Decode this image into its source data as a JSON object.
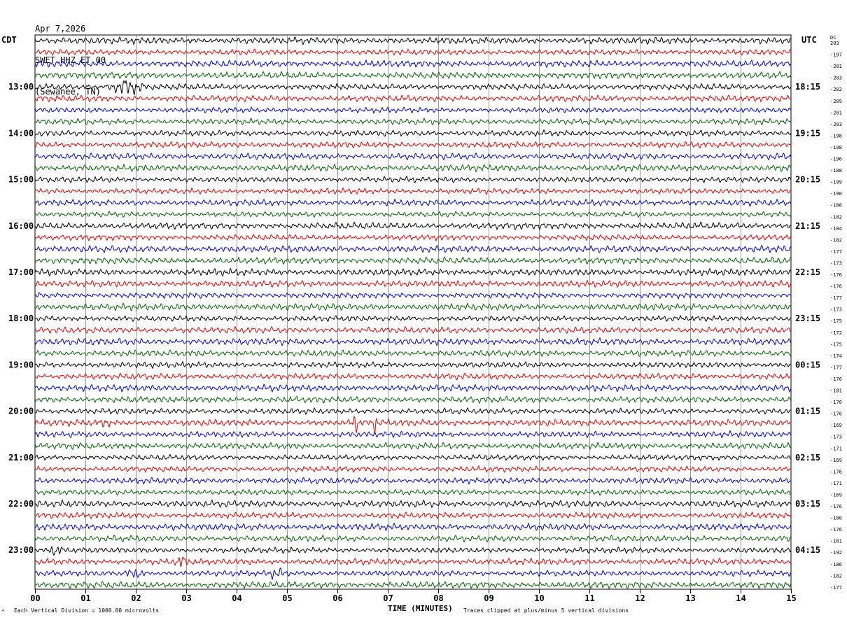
{
  "header": {
    "date": "Apr 7,2026",
    "station": "SWET HHZ ET 00",
    "location": "(Sewanee, TN)"
  },
  "left_zone": "CDT",
  "right_zone": "UTC",
  "dc_header": "DC",
  "footer": {
    "left": "Each Vertical Division = 1000.00 microvolts",
    "right": "Traces clipped at plus/minus 5 vertical divisions",
    "corner_mark": "^"
  },
  "colors": {
    "trace_cycle": [
      "#000000",
      "#ee0000",
      "#0000dd",
      "#006600"
    ],
    "grid": "#808080"
  },
  "chart_data": {
    "type": "line",
    "title": "",
    "xlabel": "TIME (MINUTES)",
    "ylabel": "",
    "xlim": [
      0,
      15
    ],
    "x_ticks": [
      "00",
      "01",
      "02",
      "03",
      "04",
      "05",
      "06",
      "07",
      "08",
      "09",
      "10",
      "11",
      "12",
      "13",
      "14",
      "15"
    ],
    "grid": "vertical",
    "traces_per_hour": 4,
    "trace_count": 48,
    "left_hour_labels": [
      {
        "trace_index": 4,
        "label": "13:00"
      },
      {
        "trace_index": 8,
        "label": "14:00"
      },
      {
        "trace_index": 12,
        "label": "15:00"
      },
      {
        "trace_index": 16,
        "label": "16:00"
      },
      {
        "trace_index": 20,
        "label": "17:00"
      },
      {
        "trace_index": 24,
        "label": "18:00"
      },
      {
        "trace_index": 28,
        "label": "19:00"
      },
      {
        "trace_index": 32,
        "label": "20:00"
      },
      {
        "trace_index": 36,
        "label": "21:00"
      },
      {
        "trace_index": 40,
        "label": "22:00"
      },
      {
        "trace_index": 44,
        "label": "23:00"
      }
    ],
    "right_hour_labels": [
      {
        "trace_index": 4,
        "label": "18:15"
      },
      {
        "trace_index": 8,
        "label": "19:15"
      },
      {
        "trace_index": 12,
        "label": "20:15"
      },
      {
        "trace_index": 16,
        "label": "21:15"
      },
      {
        "trace_index": 20,
        "label": "22:15"
      },
      {
        "trace_index": 24,
        "label": "23:15"
      },
      {
        "trace_index": 28,
        "label": "00:15"
      },
      {
        "trace_index": 32,
        "label": "01:15"
      },
      {
        "trace_index": 36,
        "label": "02:15"
      },
      {
        "trace_index": 40,
        "label": "03:15"
      },
      {
        "trace_index": 44,
        "label": "04:15"
      }
    ],
    "dc_offsets": [
      "203",
      "-197",
      "-201",
      "-203",
      "-202",
      "-209",
      "-201",
      "-203",
      "-198",
      "-198",
      "-196",
      "-188",
      "-199",
      "-190",
      "-186",
      "-182",
      "-184",
      "-182",
      "-177",
      "-173",
      "-176",
      "-176",
      "-177",
      "-173",
      "-175",
      "-172",
      "-175",
      "-174",
      "-177",
      "-176",
      "-181",
      "-176",
      "-176",
      "-169",
      "-173",
      "-171",
      "-169",
      "-176",
      "-171",
      "-169",
      "-176",
      "-180",
      "-176",
      "-181",
      "-192",
      "-186",
      "-182",
      "-177"
    ],
    "events": [
      {
        "trace_index": 4,
        "minute": 1.8,
        "amplitude": "high",
        "width": 0.4
      },
      {
        "trace_index": 33,
        "minute": 6.35,
        "amplitude": "high",
        "width": 0.08
      },
      {
        "trace_index": 33,
        "minute": 6.75,
        "amplitude": "high",
        "width": 0.05
      },
      {
        "trace_index": 33,
        "minute": 1.4,
        "amplitude": "medium",
        "width": 0.1
      },
      {
        "trace_index": 44,
        "minute": 4.25,
        "amplitude": "medium",
        "width": 0.05
      },
      {
        "trace_index": 44,
        "minute": 0.4,
        "amplitude": "medium",
        "width": 0.2
      },
      {
        "trace_index": 45,
        "minute": 2.9,
        "amplitude": "medium",
        "width": 0.15
      },
      {
        "trace_index": 46,
        "minute": 2.0,
        "amplitude": "medium",
        "width": 0.25
      },
      {
        "trace_index": 46,
        "minute": 4.8,
        "amplitude": "medium",
        "width": 0.25
      }
    ]
  }
}
